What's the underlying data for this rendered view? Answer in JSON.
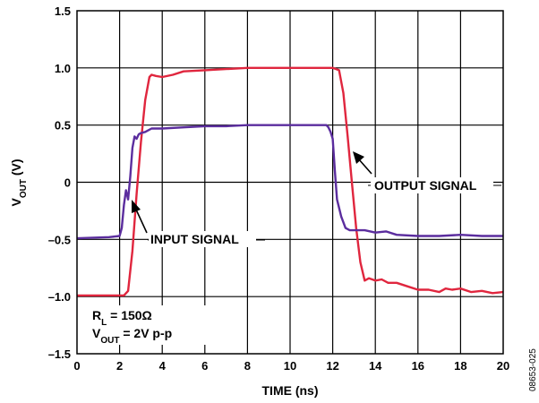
{
  "chart_data": {
    "type": "line",
    "xlabel": "TIME (ns)",
    "ylabel_main": "V",
    "ylabel_sub": "OUT",
    "ylabel_unit": " (V)",
    "xlim": [
      0,
      20
    ],
    "ylim": [
      -1.5,
      1.5
    ],
    "x_ticks": [
      "0",
      "2",
      "4",
      "6",
      "8",
      "10",
      "12",
      "14",
      "16",
      "18",
      "20"
    ],
    "y_ticks": [
      "1.5",
      "1.0",
      "0.5",
      "0",
      "–0.5",
      "–1.0",
      "–1.5"
    ],
    "grid": true,
    "colors": {
      "output": "#e0263e",
      "input": "#5b2d9e",
      "grid": "#000000"
    },
    "series": [
      {
        "name": "OUTPUT SIGNAL",
        "color": "#e0263e",
        "x": [
          0,
          2.2,
          2.4,
          2.6,
          2.8,
          3.0,
          3.2,
          3.4,
          3.5,
          3.7,
          4.0,
          4.5,
          5.0,
          6.0,
          7.0,
          8.0,
          9.0,
          10.0,
          11.0,
          12.0,
          12.3,
          12.5,
          12.7,
          12.9,
          13.1,
          13.3,
          13.5,
          13.7,
          14.0,
          14.3,
          14.6,
          15.0,
          15.5,
          16.0,
          16.5,
          17.0,
          17.3,
          17.6,
          18.0,
          18.5,
          19.0,
          19.5,
          20.0
        ],
        "y": [
          -0.99,
          -0.99,
          -0.95,
          -0.6,
          -0.1,
          0.35,
          0.72,
          0.92,
          0.94,
          0.93,
          0.92,
          0.94,
          0.97,
          0.98,
          0.99,
          1.0,
          1.0,
          1.0,
          1.0,
          1.0,
          0.98,
          0.78,
          0.4,
          0.0,
          -0.4,
          -0.7,
          -0.86,
          -0.84,
          -0.86,
          -0.85,
          -0.88,
          -0.88,
          -0.91,
          -0.94,
          -0.94,
          -0.96,
          -0.93,
          -0.94,
          -0.93,
          -0.96,
          -0.95,
          -0.97,
          -0.96
        ]
      },
      {
        "name": "INPUT SIGNAL",
        "color": "#5b2d9e",
        "x": [
          0,
          1.5,
          2.0,
          2.1,
          2.2,
          2.3,
          2.4,
          2.5,
          2.6,
          2.7,
          2.8,
          2.9,
          3.0,
          3.2,
          3.5,
          4.0,
          5.0,
          6.0,
          7.0,
          8.0,
          9.0,
          10.0,
          11.0,
          11.7,
          11.8,
          11.9,
          12.0,
          12.1,
          12.2,
          12.4,
          12.6,
          12.8,
          13.0,
          13.5,
          14.0,
          14.5,
          15.0,
          16.0,
          17.0,
          18.0,
          19.0,
          20.0
        ],
        "y": [
          -0.49,
          -0.48,
          -0.47,
          -0.4,
          -0.2,
          -0.07,
          -0.15,
          0.05,
          0.3,
          0.4,
          0.38,
          0.42,
          0.43,
          0.44,
          0.47,
          0.47,
          0.48,
          0.49,
          0.49,
          0.5,
          0.5,
          0.5,
          0.5,
          0.5,
          0.48,
          0.44,
          0.38,
          0.1,
          -0.15,
          -0.3,
          -0.4,
          -0.42,
          -0.42,
          -0.42,
          -0.44,
          -0.43,
          -0.46,
          -0.47,
          -0.47,
          -0.46,
          -0.47,
          -0.47
        ]
      }
    ],
    "annotations": {
      "output_label": "OUTPUT SIGNAL",
      "input_label": "INPUT SIGNAL",
      "rl_main": "R",
      "rl_sub": "L",
      "rl_rest": " = 150Ω",
      "vout_main": "V",
      "vout_sub": "OUT",
      "vout_rest": " = 2V p-p"
    }
  },
  "figure_id": "08653-025"
}
